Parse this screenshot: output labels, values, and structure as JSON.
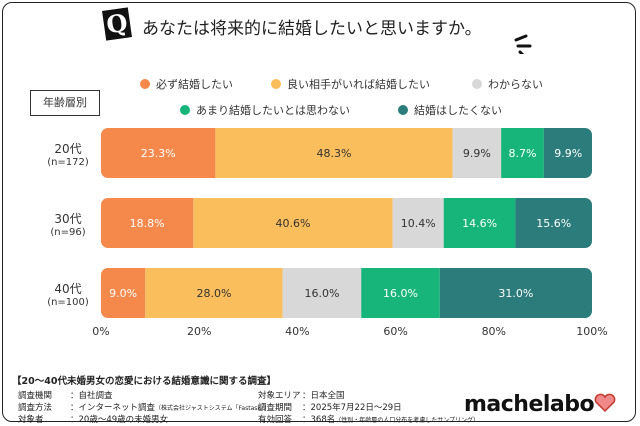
{
  "header": {
    "q": "Q",
    "title": "あなたは将来的に結婚したいと思いますか。"
  },
  "group_label": "年齢層別",
  "chart_data": {
    "type": "bar",
    "orientation": "horizontal",
    "stacked": true,
    "title": "あなたは将来的に結婚したいと思いますか。",
    "categories": [
      {
        "age": "20代",
        "n": "(n=172)"
      },
      {
        "age": "30代",
        "n": "(n=96)"
      },
      {
        "age": "40代",
        "n": "(n=100)"
      }
    ],
    "series": [
      {
        "name": "必ず結婚したい",
        "color": "#F4894B",
        "values": [
          23.3,
          18.8,
          9.0
        ]
      },
      {
        "name": "良い相手がいれば結婚したい",
        "color": "#FBBE5C",
        "values": [
          48.3,
          40.6,
          28.0
        ]
      },
      {
        "name": "わからない",
        "color": "#D8D8D8",
        "values": [
          9.9,
          10.4,
          16.0
        ]
      },
      {
        "name": "あまり結婚したいとは思わない",
        "color": "#17B57A",
        "values": [
          8.7,
          14.6,
          16.0
        ]
      },
      {
        "name": "結婚はしたくない",
        "color": "#2B7C7A",
        "values": [
          9.9,
          15.6,
          31.0
        ]
      }
    ],
    "xlim": [
      0,
      100
    ],
    "xticks": [
      "0%",
      "20%",
      "40%",
      "60%",
      "80%",
      "100%"
    ],
    "legend": "top"
  },
  "footer": {
    "title": "【20～40代未婚男女の恋愛における結婚意識に関する調査】",
    "rows": [
      {
        "k": "調査機関",
        "v": "：自社調査"
      },
      {
        "k": "調査方法",
        "v": "：インターネット調査",
        "note": "（株式会社ジャストシステム「Fastask」）"
      },
      {
        "k": "対象者",
        "v": "：20歳～49歳の未婚男女"
      },
      {
        "k": "対象エリア",
        "v": "：日本全国"
      },
      {
        "k": "調査期間",
        "v": "：2025年7月22日～29日"
      },
      {
        "k": "有効回答",
        "v": "：368名",
        "note": "（性別・年齢層の人口分布を考慮したサンプリング）"
      }
    ],
    "logo": "machelabo"
  }
}
